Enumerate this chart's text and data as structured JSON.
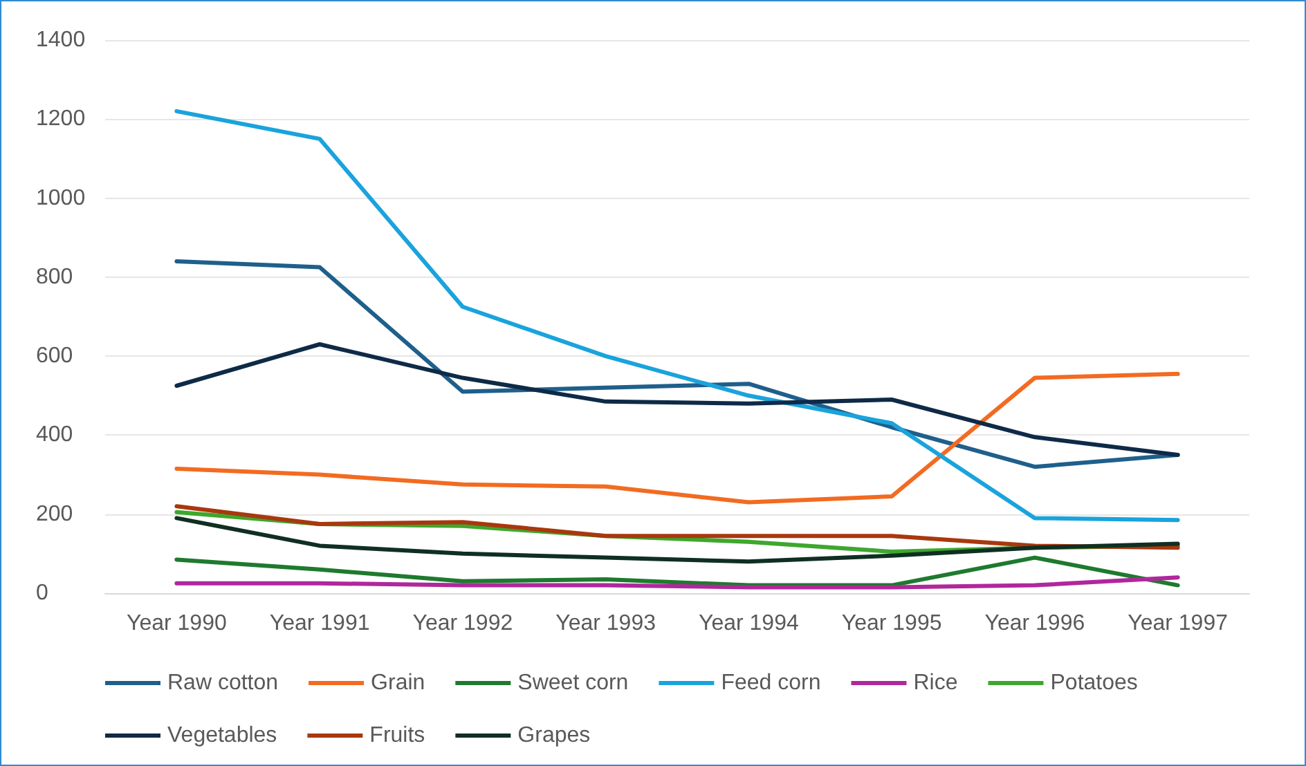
{
  "chart_data": {
    "type": "line",
    "categories": [
      "Year 1990",
      "Year 1991",
      "Year 1992",
      "Year 1993",
      "Year 1994",
      "Year 1995",
      "Year 1996",
      "Year 1997"
    ],
    "series": [
      {
        "name": "Raw cotton",
        "color": "#1f5f8b",
        "values": [
          840,
          825,
          510,
          520,
          530,
          420,
          320,
          350
        ]
      },
      {
        "name": "Grain",
        "color": "#f26b21",
        "values": [
          315,
          300,
          275,
          270,
          230,
          245,
          545,
          555
        ]
      },
      {
        "name": "Sweet corn",
        "color": "#1e7a2e",
        "values": [
          85,
          60,
          30,
          35,
          20,
          20,
          90,
          20
        ]
      },
      {
        "name": "Feed corn",
        "color": "#1aa3dc",
        "values": [
          1220,
          1150,
          725,
          600,
          500,
          430,
          190,
          185
        ]
      },
      {
        "name": "Rice",
        "color": "#b0279c",
        "values": [
          25,
          25,
          20,
          20,
          15,
          15,
          20,
          40
        ]
      },
      {
        "name": "Potatoes",
        "color": "#3ea72d",
        "values": [
          205,
          175,
          170,
          145,
          130,
          105,
          115,
          120
        ]
      },
      {
        "name": "Vegetables",
        "color": "#0e2a47",
        "values": [
          525,
          630,
          545,
          485,
          480,
          490,
          395,
          350
        ]
      },
      {
        "name": "Fruits",
        "color": "#a8380e",
        "values": [
          220,
          175,
          180,
          145,
          145,
          145,
          120,
          115
        ]
      },
      {
        "name": "Grapes",
        "color": "#0f2f22",
        "values": [
          190,
          120,
          100,
          90,
          80,
          95,
          115,
          125
        ]
      }
    ],
    "ylim": [
      0,
      1400
    ],
    "yticks": [
      0,
      200,
      400,
      600,
      800,
      1000,
      1200,
      1400
    ],
    "grid": "y",
    "legend": "bottom",
    "marker": "none",
    "line_style": "solid"
  }
}
